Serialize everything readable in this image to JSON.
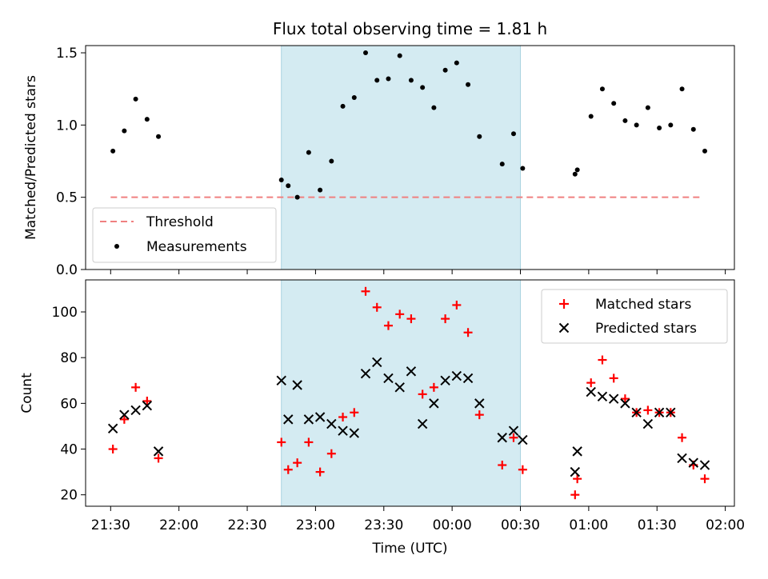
{
  "chart_data": [
    {
      "type": "scatter",
      "title": "Flux total observing time = 1.81 h",
      "xlabel": "",
      "ylabel": "Matched/Predicted stars",
      "ylim": [
        0,
        1.55
      ],
      "yticks": [
        "0.0",
        "0.5",
        "1.0",
        "1.5"
      ],
      "shaded_region": {
        "from": "22:45",
        "to": "00:30",
        "color": "#d4ebf2"
      },
      "threshold": {
        "name": "Threshold",
        "value": 0.5,
        "from": "21:30",
        "to": "01:50",
        "color": "#f08080"
      },
      "series": [
        {
          "name": "Measurements",
          "marker": "dot",
          "color": "#000000",
          "x": [
            "21:31",
            "21:36",
            "21:41",
            "21:46",
            "21:51",
            "22:45",
            "22:48",
            "22:52",
            "22:57",
            "23:02",
            "23:07",
            "23:12",
            "23:17",
            "23:22",
            "23:27",
            "23:32",
            "23:37",
            "23:42",
            "23:47",
            "23:52",
            "23:57",
            "00:02",
            "00:07",
            "00:12",
            "00:22",
            "00:27",
            "00:31",
            "00:54",
            "00:55",
            "01:01",
            "01:06",
            "01:11",
            "01:16",
            "01:21",
            "01:26",
            "01:31",
            "01:36",
            "01:41",
            "01:46",
            "01:51"
          ],
          "y": [
            0.82,
            0.96,
            1.18,
            1.04,
            0.92,
            0.62,
            0.58,
            0.5,
            0.81,
            0.55,
            0.75,
            1.13,
            1.19,
            1.5,
            1.31,
            1.32,
            1.48,
            1.31,
            1.26,
            1.12,
            1.38,
            1.43,
            1.28,
            0.92,
            0.73,
            0.94,
            0.7,
            0.66,
            0.69,
            1.06,
            1.25,
            1.15,
            1.03,
            1.0,
            1.12,
            0.98,
            1.0,
            1.25,
            0.97,
            0.82
          ]
        }
      ],
      "legend": {
        "position": "bottom-left"
      }
    },
    {
      "type": "scatter",
      "title": "",
      "xlabel": "Time (UTC)",
      "ylabel": "Count",
      "ylim": [
        15,
        114
      ],
      "yticks": [
        "20",
        "40",
        "60",
        "80",
        "100"
      ],
      "xlim": [
        "21:19",
        "02:04"
      ],
      "xticks": [
        "21:30",
        "22:00",
        "22:30",
        "23:00",
        "23:30",
        "00:00",
        "00:30",
        "01:00",
        "01:30",
        "02:00"
      ],
      "shaded_region": {
        "from": "22:45",
        "to": "00:30",
        "color": "#d4ebf2"
      },
      "series": [
        {
          "name": "Matched stars",
          "marker": "plus",
          "color": "#ff0000",
          "x": [
            "21:31",
            "21:36",
            "21:41",
            "21:46",
            "21:51",
            "22:45",
            "22:48",
            "22:52",
            "22:57",
            "23:02",
            "23:07",
            "23:12",
            "23:17",
            "23:22",
            "23:27",
            "23:32",
            "23:37",
            "23:42",
            "23:47",
            "23:52",
            "23:57",
            "00:02",
            "00:07",
            "00:12",
            "00:22",
            "00:27",
            "00:31",
            "00:54",
            "00:55",
            "01:01",
            "01:06",
            "01:11",
            "01:16",
            "01:21",
            "01:26",
            "01:31",
            "01:36",
            "01:41",
            "01:46",
            "01:51"
          ],
          "y": [
            40,
            53,
            67,
            61,
            36,
            43,
            31,
            34,
            43,
            30,
            38,
            54,
            56,
            109,
            102,
            94,
            99,
            97,
            64,
            67,
            97,
            103,
            91,
            55,
            33,
            45,
            31,
            20,
            27,
            69,
            79,
            71,
            62,
            56,
            57,
            56,
            56,
            45,
            33,
            27
          ]
        },
        {
          "name": "Predicted stars",
          "marker": "x",
          "color": "#000000",
          "x": [
            "21:31",
            "21:36",
            "21:41",
            "21:46",
            "21:51",
            "22:45",
            "22:48",
            "22:52",
            "22:57",
            "23:02",
            "23:07",
            "23:12",
            "23:17",
            "23:22",
            "23:27",
            "23:32",
            "23:37",
            "23:42",
            "23:47",
            "23:52",
            "23:57",
            "00:02",
            "00:07",
            "00:12",
            "00:22",
            "00:27",
            "00:31",
            "00:54",
            "00:55",
            "01:01",
            "01:06",
            "01:11",
            "01:16",
            "01:21",
            "01:26",
            "01:31",
            "01:36",
            "01:41",
            "01:46",
            "01:51"
          ],
          "y": [
            49,
            55,
            57,
            59,
            39,
            70,
            53,
            68,
            53,
            54,
            51,
            48,
            47,
            73,
            78,
            71,
            67,
            74,
            51,
            60,
            70,
            72,
            71,
            60,
            45,
            48,
            44,
            30,
            39,
            65,
            63,
            62,
            60,
            56,
            51,
            56,
            56,
            36,
            34,
            33
          ]
        }
      ],
      "legend": {
        "position": "top-right"
      }
    }
  ]
}
